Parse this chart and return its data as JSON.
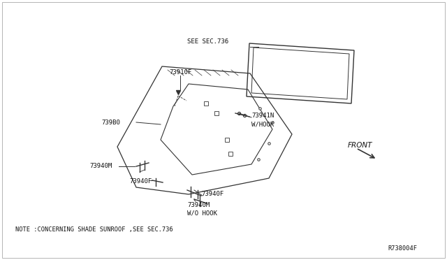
{
  "bg_color": "#ffffff",
  "line_color": "#333333",
  "text_color": "#111111",
  "note_text": "NOTE ₁CONCERNING SHADE SUNROOF ,SEE SEC.736",
  "ref_code": "R738004F",
  "labels": {
    "see_sec736": "SEE SEC.736",
    "73910F": "73910F",
    "739B0": "739B0",
    "73941N": "73941N",
    "73941N_sub": "W/HOOK",
    "73940M_upper": "73940M",
    "73940F_upper": "73940F",
    "73940F_lower": "73940F",
    "73940M_lower": "73940M",
    "73940M_lower_sub": "W/O HOOK",
    "FRONT": "FRONT"
  },
  "figsize": [
    6.4,
    3.72
  ],
  "dpi": 100
}
